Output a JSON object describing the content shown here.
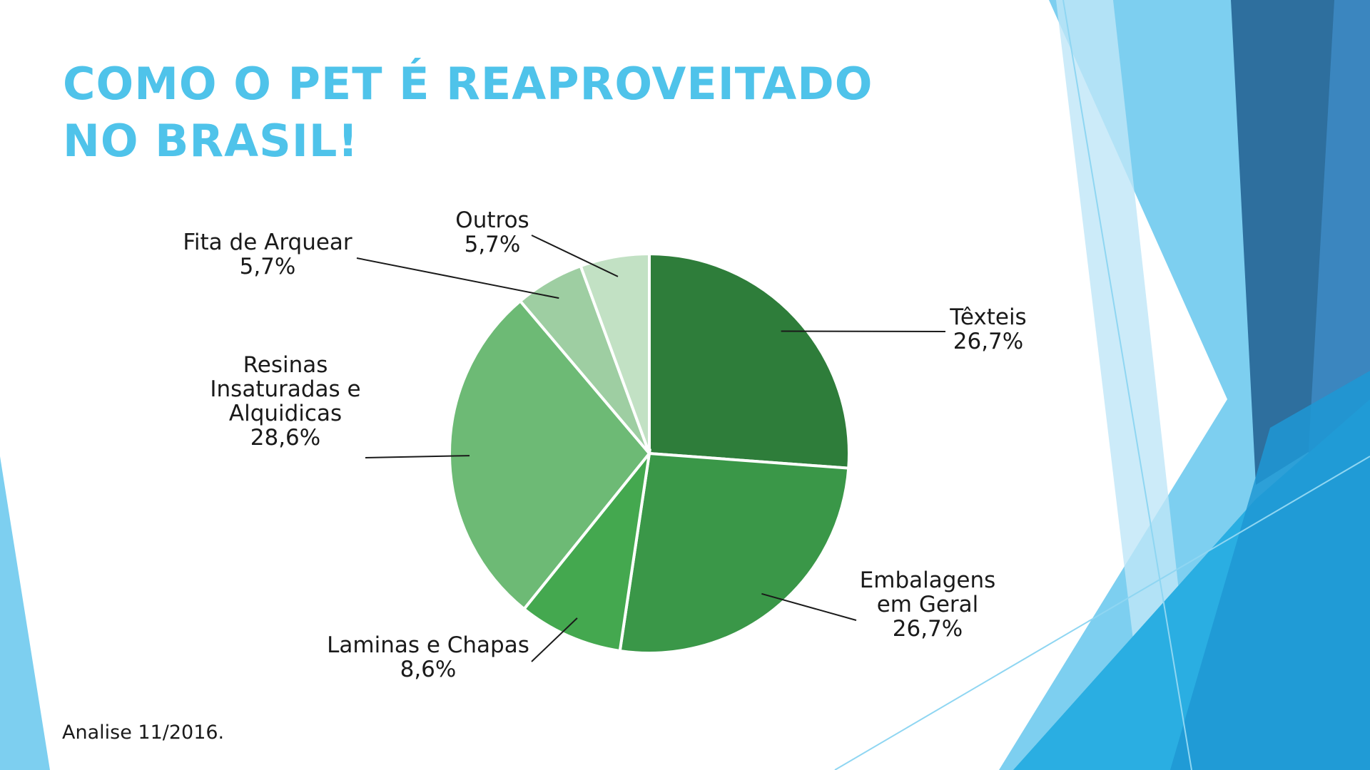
{
  "slide": {
    "title_lines": [
      "COMO O PET É REAPROVEITADO",
      "NO BRASIL!"
    ],
    "source": "Analise 11/2016."
  },
  "colors": {
    "title": "#4fc3ea",
    "accent_dark_blue": "#2e6f9e",
    "accent_light_blue": "#7dcff0"
  },
  "chart_data": {
    "type": "pie",
    "title": "",
    "start": "12 o'clock, clockwise",
    "slices": [
      {
        "label_lines": [
          "Têxteis"
        ],
        "value": 26.7,
        "value_label": "26,7%",
        "color": "#2e7d3a"
      },
      {
        "label_lines": [
          "Embalagens",
          "em Geral"
        ],
        "value": 26.7,
        "value_label": "26,7%",
        "color": "#3a9748"
      },
      {
        "label_lines": [
          "Laminas e Chapas"
        ],
        "value": 8.6,
        "value_label": "8,6%",
        "color": "#44a84f"
      },
      {
        "label_lines": [
          "Resinas",
          "Insaturadas e",
          "Alquidicas"
        ],
        "value": 28.6,
        "value_label": "28,6%",
        "color": "#6dba75"
      },
      {
        "label_lines": [
          "Fita de Arquear"
        ],
        "value": 5.7,
        "value_label": "5,7%",
        "color": "#9ecea2"
      },
      {
        "label_lines": [
          "Outros"
        ],
        "value": 5.7,
        "value_label": "5,7%",
        "color": "#c2e1c4"
      }
    ]
  }
}
